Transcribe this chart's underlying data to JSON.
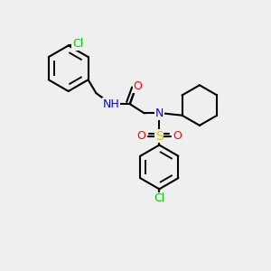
{
  "bg_color": "#efefef",
  "bond_color": "#000000",
  "bond_lw": 1.5,
  "atom_colors": {
    "N": "#0000ff",
    "O": "#ff0000",
    "S": "#cccc00",
    "Cl": "#00cc00",
    "C": "#000000",
    "H": "#606060"
  },
  "font_size": 9,
  "font_size_small": 8
}
